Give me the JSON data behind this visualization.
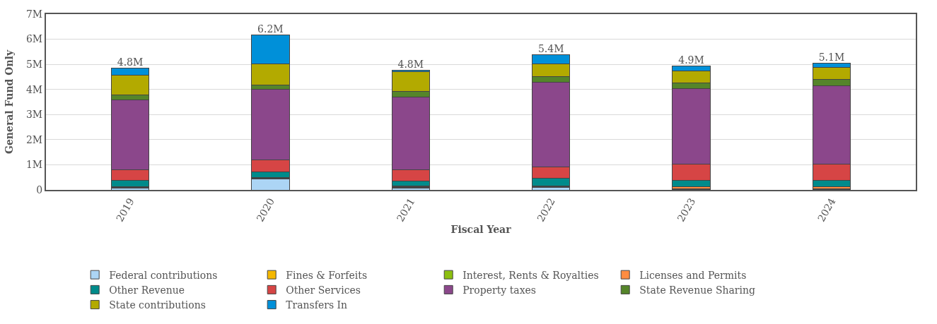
{
  "chart_data": {
    "type": "bar",
    "stacked": true,
    "xlabel": "Fiscal Year",
    "ylabel": "General Fund Only",
    "categories": [
      "2019",
      "2020",
      "2021",
      "2022",
      "2023",
      "2024"
    ],
    "series": [
      {
        "name": "Federal contributions",
        "color": "#acd5f5",
        "values": [
          0.07,
          0.43,
          0.08,
          0.11,
          0.02,
          0.02
        ]
      },
      {
        "name": "Fines & Forfeits",
        "color": "#f5b800",
        "values": [
          0.02,
          0.02,
          0.02,
          0.02,
          0.02,
          0.02
        ]
      },
      {
        "name": "Interest, Rents & Royalties",
        "color": "#8cbf0f",
        "values": [
          0.04,
          0.02,
          0.04,
          0.01,
          0.01,
          0.01
        ]
      },
      {
        "name": "Licenses and Permits",
        "color": "#ff8c40",
        "values": [
          0.01,
          0.02,
          0.01,
          0.01,
          0.07,
          0.07
        ]
      },
      {
        "name": "Other Revenue",
        "color": "#008b8b",
        "values": [
          0.25,
          0.23,
          0.19,
          0.3,
          0.25,
          0.27
        ]
      },
      {
        "name": "Other Services",
        "color": "#d64545",
        "values": [
          0.41,
          0.47,
          0.47,
          0.45,
          0.65,
          0.65
        ]
      },
      {
        "name": "Property taxes",
        "color": "#8b478b",
        "values": [
          2.79,
          2.82,
          2.9,
          3.39,
          3.01,
          3.12
        ]
      },
      {
        "name": "State Revenue Sharing",
        "color": "#55852a",
        "values": [
          0.2,
          0.16,
          0.21,
          0.23,
          0.22,
          0.23
        ]
      },
      {
        "name": "State contributions",
        "color": "#b3aa00",
        "values": [
          0.79,
          0.86,
          0.8,
          0.49,
          0.49,
          0.48
        ]
      },
      {
        "name": "Transfers In",
        "color": "#0090d9",
        "values": [
          0.26,
          1.13,
          0.04,
          0.36,
          0.18,
          0.19
        ]
      }
    ],
    "totals": [
      "4.8M",
      "6.2M",
      "4.8M",
      "5.4M",
      "4.9M",
      "5.1M"
    ],
    "ylim": [
      0,
      7
    ],
    "yticks": [
      {
        "value": 0,
        "label": "0"
      },
      {
        "value": 1,
        "label": "1M"
      },
      {
        "value": 2,
        "label": "2M"
      },
      {
        "value": 3,
        "label": "3M"
      },
      {
        "value": 4,
        "label": "4M"
      },
      {
        "value": 5,
        "label": "5M"
      },
      {
        "value": 6,
        "label": "6M"
      },
      {
        "value": 7,
        "label": "7M"
      }
    ],
    "grid": "y",
    "legend": "bottom"
  }
}
